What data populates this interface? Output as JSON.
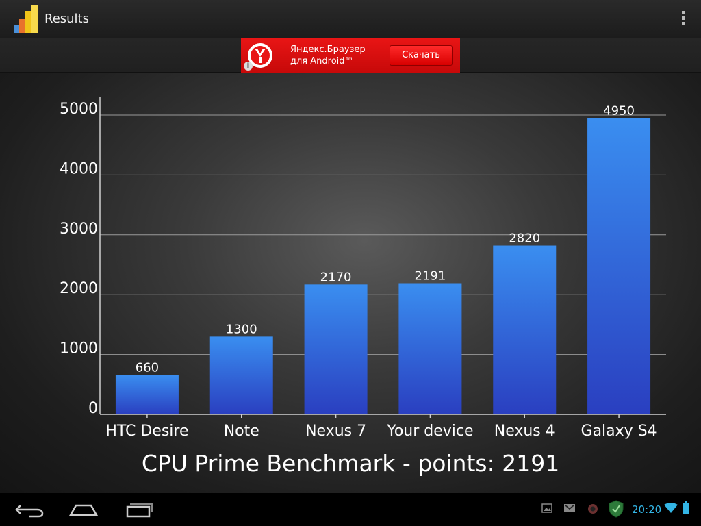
{
  "app": {
    "title": "Results",
    "icon": "bar-chart-app-icon",
    "menu_icon": "overflow-menu-icon"
  },
  "ad": {
    "line1": "Яндекс.Браузер",
    "line2": "для Android™",
    "button": "Скачать",
    "info": "i",
    "logo_icon": "yandex-browser-logo"
  },
  "chart_data": {
    "type": "bar",
    "categories": [
      "HTC Desire",
      "Note",
      "Nexus 7",
      "Your device",
      "Nexus 4",
      "Galaxy S4"
    ],
    "values": [
      660,
      1300,
      2170,
      2191,
      2820,
      4950
    ],
    "value_labels": [
      "660",
      "1300",
      "2170",
      "2191",
      "2820",
      "4950"
    ],
    "yticks": [
      "0",
      "1000",
      "2000",
      "3000",
      "4000",
      "5000"
    ],
    "ytick_values": [
      0,
      1000,
      2000,
      3000,
      4000,
      5000
    ],
    "ylim": [
      0,
      5450
    ],
    "grid": true,
    "title": "CPU Prime Benchmark - points: 2191",
    "bar_color_top": "#3a8ef0",
    "bar_color_bottom": "#2a3fc0"
  },
  "status_bar": {
    "time": "20:20",
    "icons": [
      "image-icon",
      "gmail-icon",
      "security-app-icon",
      "antivirus-shield-icon",
      "wifi-icon",
      "battery-icon"
    ],
    "accent_color": "#33b5e5"
  },
  "nav": {
    "buttons": [
      "back-icon",
      "home-icon",
      "recent-apps-icon"
    ]
  }
}
